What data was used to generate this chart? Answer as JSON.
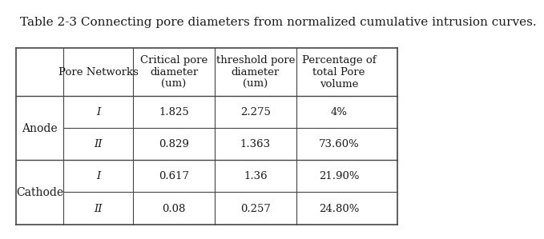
{
  "title": "Table 2-3 Connecting pore diameters from normalized cumulative intrusion curves.",
  "title_fontsize": 11,
  "col_headers": [
    "",
    "Pore Networks",
    "Critical pore\ndiameter\n(um)",
    "threshold pore\ndiameter\n(um)",
    "Percentage of\ntotal Pore\nvolume"
  ],
  "row_groups": [
    {
      "group_label": "Anode",
      "rows": [
        [
          "I",
          "1.825",
          "2.275",
          "4%"
        ],
        [
          "II",
          "0.829",
          "1.363",
          "73.60%"
        ]
      ]
    },
    {
      "group_label": "Cathode",
      "rows": [
        [
          "I",
          "0.617",
          "1.36",
          "21.90%"
        ],
        [
          "II",
          "0.08",
          "0.257",
          "24.80%"
        ]
      ]
    }
  ],
  "bg_color": "#ffffff",
  "text_color": "#1a1a1a",
  "line_color": "#444444",
  "font_family": "DejaVu Serif",
  "data_fontsize": 9.5,
  "header_fontsize": 9.5,
  "group_fontsize": 10
}
